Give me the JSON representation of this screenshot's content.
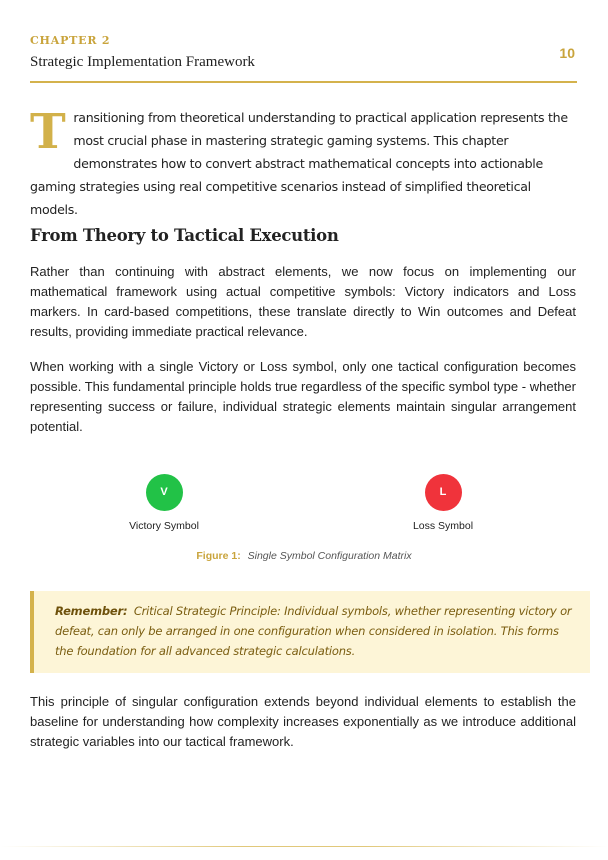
{
  "header": {
    "chapter_label": "CHAPTER 2",
    "chapter_title": "Strategic Implementation Framework",
    "page_number": "10"
  },
  "intro": {
    "dropcap": "T",
    "text": "ransitioning from theoretical understanding to practical application represents the most crucial phase in mastering strategic gaming systems. This chapter demonstrates how to convert abstract mathematical concepts into actionable gaming strategies using real competitive scenarios instead of simplified theoretical models."
  },
  "section": {
    "heading": "From Theory to Tactical Execution",
    "paragraphs": [
      "Rather than continuing with abstract elements, we now focus on implementing our mathematical framework using actual competitive symbols: Victory indicators and Loss markers. In card-based competitions, these translate directly to Win outcomes and Defeat results, providing immediate practical relevance.",
      "When working with a single Victory or Loss symbol, only one tactical configuration becomes possible. This fundamental principle holds true regardless of the specific symbol type - whether representing success or failure, individual strategic elements maintain singular arrangement potential."
    ]
  },
  "figure": {
    "symbols": [
      {
        "glyph": "V",
        "label": "Victory Symbol",
        "color": "#22c247"
      },
      {
        "glyph": "L",
        "label": "Loss Symbol",
        "color": "#f0333b"
      }
    ],
    "caption_label": "Figure 1:",
    "caption_text": "Single Symbol Configuration Matrix"
  },
  "callout": {
    "label": "Remember:",
    "text": "Critical Strategic Principle: Individual symbols, whether representing victory or defeat, can only be arranged in one configuration when considered in isolation. This forms the foundation for all advanced strategic calculations."
  },
  "closing": {
    "text": "This principle of singular configuration extends beyond individual elements to establish the baseline for understanding how complexity increases exponentially as we introduce additional strategic variables into our tactical framework."
  },
  "colors": {
    "accent": "#c9a43c",
    "callout_bg": "#fdf5d7"
  }
}
